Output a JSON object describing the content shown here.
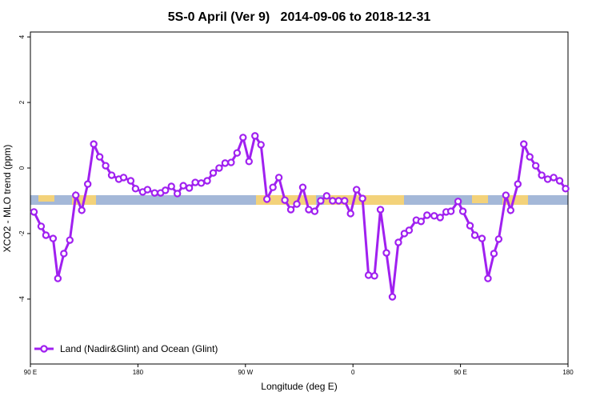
{
  "chart_data": {
    "type": "line",
    "title": "5S-0 April (Ver 9)   2014-09-06 to 2018-12-31",
    "x_label": "Longitude (deg E)",
    "y_label": "XCO2 - MLO trend (ppm)",
    "xlim": [
      90,
      540
    ],
    "xticks": [
      {
        "value": 90,
        "label": "90 E"
      },
      {
        "value": 180,
        "label": "180"
      },
      {
        "value": 270,
        "label": "90 W"
      },
      {
        "value": 360,
        "label": "0"
      },
      {
        "value": 450,
        "label": "90 E"
      },
      {
        "value": 540,
        "label": "180"
      }
    ],
    "ylim": [
      -5.98,
      4.15
    ],
    "yticks": [
      -4,
      -2,
      0,
      2,
      4
    ],
    "legend": "bottomleft",
    "x": [
      93,
      99,
      103,
      109,
      113,
      118,
      123,
      128,
      133,
      138,
      143,
      148,
      153,
      158,
      164,
      168,
      174,
      178,
      184,
      188,
      194,
      199,
      203,
      208,
      213,
      218,
      223,
      228,
      233,
      238,
      243,
      248,
      253,
      258,
      263,
      268,
      273,
      278,
      283,
      288,
      293,
      298,
      303,
      308,
      313,
      318,
      323,
      328,
      333,
      338,
      343,
      348,
      353,
      358,
      363,
      368,
      373,
      378,
      383,
      388,
      393,
      398,
      403,
      407,
      413,
      417,
      422,
      428,
      433,
      438,
      442,
      448,
      452,
      458,
      462,
      468,
      473,
      478,
      482,
      488,
      492,
      498,
      503,
      508,
      513,
      518,
      523,
      528,
      533,
      538
    ],
    "series": [
      {
        "name": "Land (Nadir&Glint) and Ocean (Glint)",
        "color": "#a020f0",
        "values": [
          -1.34,
          -1.78,
          -2.05,
          -2.15,
          -3.37,
          -2.61,
          -2.2,
          -0.83,
          -1.29,
          -0.49,
          0.73,
          0.34,
          0.07,
          -0.22,
          -0.34,
          -0.29,
          -0.39,
          -0.63,
          -0.73,
          -0.66,
          -0.76,
          -0.76,
          -0.68,
          -0.56,
          -0.78,
          -0.54,
          -0.61,
          -0.44,
          -0.46,
          -0.39,
          -0.15,
          0,
          0.15,
          0.17,
          0.46,
          0.93,
          0.2,
          0.98,
          0.71,
          -0.95,
          -0.59,
          -0.29,
          -0.98,
          -1.27,
          -1.1,
          -0.59,
          -1.27,
          -1.32,
          -1.0,
          -0.85,
          -1.0,
          -1.0,
          -1.0,
          -1.39,
          -0.66,
          -0.93,
          -3.27,
          -3.29,
          -1.27,
          -2.59,
          -3.93,
          -2.27,
          -2.0,
          -1.9,
          -1.59,
          -1.63,
          -1.44,
          -1.46,
          -1.51,
          -1.34,
          -1.32,
          -1.02,
          -1.32,
          -1.76,
          -2.05,
          -2.15,
          -3.37,
          -2.61,
          -2.17,
          -0.83,
          -1.29,
          -0.49,
          0.73,
          0.34,
          0.07,
          -0.22,
          -0.34,
          -0.29,
          -0.39,
          -0.63
        ]
      }
    ]
  }
}
